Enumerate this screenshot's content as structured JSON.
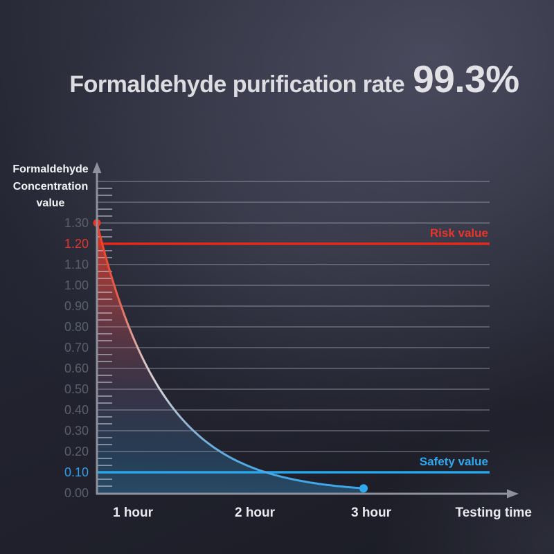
{
  "title": {
    "prefix": "Formaldehyde purification rate",
    "value": "99.3%"
  },
  "chart_data": {
    "type": "area",
    "title": "Formaldehyde purification rate 99.3%",
    "y_axis_title_lines": [
      "Formaldehyde",
      "Concentration",
      "value"
    ],
    "x_axis_title": "Testing time",
    "x_tick_labels": [
      "1 hour",
      "2 hour",
      "3 hour"
    ],
    "y_tick_labels": [
      "1.30",
      "1.20",
      "1.10",
      "1.00",
      "0.90",
      "0.80",
      "0.70",
      "0.60",
      "0.50",
      "0.40",
      "0.30",
      "0.20",
      "0.10",
      "0.00"
    ],
    "ylim": [
      0,
      1.5
    ],
    "grid": true,
    "legend": "none",
    "reference_lines": [
      {
        "name": "risk",
        "label": "Risk value",
        "value": 1.2,
        "color": "#e5291b"
      },
      {
        "name": "safety",
        "label": "Safety value",
        "value": 0.1,
        "color": "#2aa4e9"
      }
    ],
    "series": [
      {
        "name": "formaldehyde-concentration",
        "shape": "exponential-decay",
        "points": [
          [
            0,
            1.3
          ],
          [
            0.5,
            0.99
          ],
          [
            1,
            0.75
          ],
          [
            1.5,
            0.3
          ],
          [
            2,
            0.12
          ],
          [
            2.5,
            0.05
          ],
          [
            3,
            0.02
          ]
        ],
        "start_marker": {
          "t": 0,
          "v": 1.3,
          "color": "#ee3322"
        },
        "end_marker": {
          "t": 3,
          "v": 0.02,
          "color": "#2fa9ee"
        }
      }
    ],
    "colors": {
      "grid": "rgba(190,196,210,0.5)",
      "minor_tick": "rgba(208,213,224,0.7)",
      "axis": "#8f929c",
      "tick_label": "#5b5f6c",
      "tick_label_risk": "#e5352a",
      "tick_label_safety": "#2e9fe8",
      "risk_label": "#e8352a",
      "safety_label": "#2fa9ee",
      "x_label": "#e9eaee",
      "y_axis_title": "#f2f3f5",
      "curve_top": "#f23b24",
      "curve_mid": "#d9c6c6",
      "curve_bottom": "#36a5ec",
      "fill_top": "rgba(210,55,40,0.95)",
      "fill_mid": "rgba(140,66,78,0.55)",
      "fill_bottom": "rgba(47,108,150,0.55)"
    }
  }
}
